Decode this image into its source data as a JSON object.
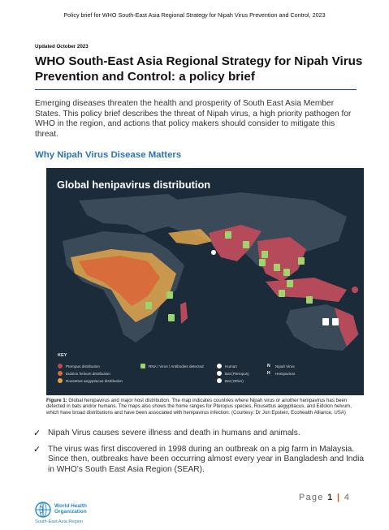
{
  "header": {
    "running_title": "Policy brief for WHO South-East Asia Regional Strategy for Nipah Virus Prevention and Control, 2023"
  },
  "document": {
    "updated": "Updated October 2023",
    "title_line1": "WHO South-East Asia Regional Strategy for Nipah Virus",
    "title_line2": "Prevention and Control: a policy brief",
    "intro": "Emerging diseases threaten the health and prosperity of South East Asia Member States. This policy brief describes the threat of Nipah virus, a high priority pathogen for WHO in the region, and actions that policy makers should consider to mitigate this threat.",
    "section_heading": "Why Nipah Virus Disease Matters"
  },
  "figure": {
    "map_title": "Global henipavirus distribution",
    "legend_key": "KEY",
    "legend": {
      "pteropus": "Pteropus distribution",
      "eidolon": "Eidolon helvum distribution",
      "rousettus": "Rousettus aegyptiacus distribution",
      "rna": "RNA / Virus / Antibodies detected",
      "human": "Human",
      "bat_pteropus": "Bat (Pteropus)",
      "bat_other": "Bat (Other)",
      "nipah": "Nipah Virus",
      "hendra": "Henipavirus",
      "n_letter": "N",
      "h_letter": "H"
    },
    "caption_label": "Figure 1:",
    "caption_text": " Global henipavirus and major host distribution.  The map indicates countries where Nipah virus or another henipavirus has been detected in bats and/or humans.  The maps also shows the home ranges for Pteropus species, Rousettus aegyptiacus, and Eidolon helvum, which have broad distributions and have been associated with henipavirus infection. (Courtesy: Dr Jon Epstein, Ecohealth Alliance, USA)",
    "colors": {
      "background": "#1c2b3a",
      "land": "#3a4a58",
      "pteropus": "#b54a5a",
      "eidolon": "#d9683a",
      "rousettus": "#e0a64c",
      "marker": "#9fd36b"
    }
  },
  "bullets": [
    {
      "check": "✓",
      "text": "Nipah Virus causes severe illness and death in humans and animals."
    },
    {
      "check": "✓",
      "text": "The virus was first discovered in 1998 during an outbreak on a pig farm in Malaysia. Since then, outbreaks have been occurring almost every year in Bangladesh and India in WHO’s South East Asia Region (SEAR)."
    }
  ],
  "footer": {
    "page_word": "Page ",
    "page_current": "1",
    "page_sep": " | ",
    "page_total": "4",
    "org_line1": "World Health",
    "org_line2": "Organization",
    "org_region": "South-East Asia Region"
  }
}
